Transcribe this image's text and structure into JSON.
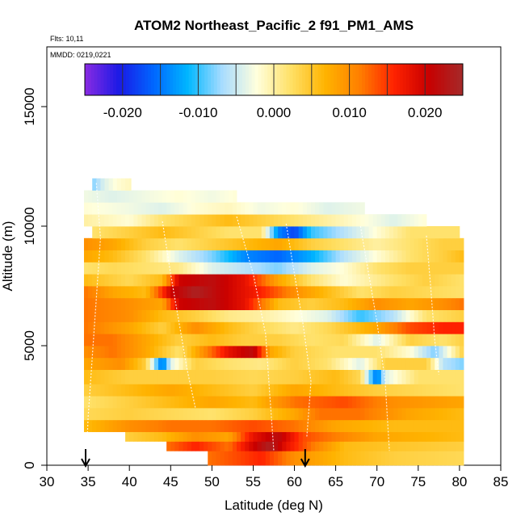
{
  "chart_data": {
    "type": "heatmap",
    "title": "ATOM2 Northeast_Pacific_2 f91_PM1_AMS",
    "subtitle_lines": [
      "Flts: 10,11",
      "MMDD: 0219,0221"
    ],
    "xlabel": "Latitude (deg N)",
    "ylabel": "Altitude (m)",
    "xlim": [
      30,
      85
    ],
    "ylim": [
      0,
      17500
    ],
    "x_ticks": [
      30,
      35,
      40,
      45,
      50,
      55,
      60,
      65,
      70,
      75,
      80,
      85
    ],
    "y_ticks": [
      0,
      5000,
      10000,
      15000
    ],
    "colorbar": {
      "range": [
        -0.025,
        0.025
      ],
      "ticks": [
        -0.02,
        -0.01,
        0.0,
        0.01,
        0.02
      ],
      "tick_labels": [
        "-0.020",
        "-0.010",
        "0.000",
        "0.010",
        "0.020"
      ],
      "colors": [
        "#8a2be2",
        "#1a1ae6",
        "#0066ff",
        "#00b7ff",
        "#a8dcff",
        "#ffffdd",
        "#ffe066",
        "#ffb300",
        "#ff7f00",
        "#ff2200",
        "#c80000",
        "#a52a2a"
      ]
    },
    "arrows_latitude": [
      34.7,
      61.3
    ],
    "layers": [
      {
        "alt0": 0,
        "alt1": 600,
        "lat0": 49.5,
        "lat1": 80.5,
        "stops": [
          [
            49.5,
            0.012
          ],
          [
            53,
            0.014
          ],
          [
            56,
            0.016
          ],
          [
            60,
            0.01
          ],
          [
            66,
            0.006
          ],
          [
            72,
            0.004
          ],
          [
            80.5,
            0.003
          ]
        ]
      },
      {
        "alt0": 600,
        "alt1": 1000,
        "lat0": 44.5,
        "lat1": 80.5,
        "stops": [
          [
            44.5,
            0.012
          ],
          [
            48,
            0.016
          ],
          [
            52,
            0.012
          ],
          [
            55,
            0.02
          ],
          [
            57,
            0.024
          ],
          [
            59,
            0.018
          ],
          [
            62,
            0.012
          ],
          [
            66,
            0.006
          ],
          [
            72,
            0.005
          ],
          [
            80.5,
            0.004
          ]
        ]
      },
      {
        "alt0": 1000,
        "alt1": 1400,
        "lat0": 39.5,
        "lat1": 80.5,
        "stops": [
          [
            39.5,
            0.004
          ],
          [
            44,
            0.006
          ],
          [
            48,
            0.01
          ],
          [
            52,
            0.008
          ],
          [
            55,
            0.018
          ],
          [
            58,
            0.022
          ],
          [
            61,
            0.014
          ],
          [
            64,
            0.012
          ],
          [
            70,
            0.008
          ],
          [
            80.5,
            0.006
          ]
        ]
      },
      {
        "alt0": 1400,
        "alt1": 1900,
        "lat0": 34.5,
        "lat1": 80.5,
        "stops": [
          [
            34.5,
            0.006
          ],
          [
            40,
            0.01
          ],
          [
            45,
            0.012
          ],
          [
            50,
            0.012
          ],
          [
            55,
            0.014
          ],
          [
            60,
            0.012
          ],
          [
            65,
            0.008
          ],
          [
            72,
            0.006
          ],
          [
            80.5,
            0.006
          ]
        ]
      },
      {
        "alt0": 1900,
        "alt1": 2400,
        "lat0": 34.5,
        "lat1": 80.5,
        "stops": [
          [
            34.5,
            0.003
          ],
          [
            40,
            0.004
          ],
          [
            45,
            0.003
          ],
          [
            50,
            0.002
          ],
          [
            55,
            0.004
          ],
          [
            60,
            0.008
          ],
          [
            63,
            0.012
          ],
          [
            68,
            0.012
          ],
          [
            74,
            0.008
          ],
          [
            80.5,
            0.006
          ]
        ]
      },
      {
        "alt0": 2400,
        "alt1": 2900,
        "lat0": 34.5,
        "lat1": 80.5,
        "stops": [
          [
            34.5,
            0.002
          ],
          [
            40,
            0.004
          ],
          [
            45,
            0.006
          ],
          [
            50,
            0.008
          ],
          [
            55,
            0.006
          ],
          [
            60,
            0.012
          ],
          [
            66,
            0.014
          ],
          [
            72,
            0.01
          ],
          [
            80.5,
            0.008
          ]
        ]
      },
      {
        "alt0": 2900,
        "alt1": 3400,
        "lat0": 34.5,
        "lat1": 80.5,
        "stops": [
          [
            34.5,
            0.004
          ],
          [
            40,
            0.006
          ],
          [
            45,
            0.008
          ],
          [
            50,
            0.006
          ],
          [
            55,
            0.004
          ],
          [
            60,
            0.008
          ],
          [
            65,
            0.006
          ],
          [
            70,
            0.004
          ],
          [
            75,
            0.003
          ],
          [
            80.5,
            0.002
          ]
        ]
      },
      {
        "alt0": 3400,
        "alt1": 4000,
        "lat0": 34.5,
        "lat1": 80.5,
        "stops": [
          [
            34.5,
            0.006
          ],
          [
            40,
            0.004
          ],
          [
            45,
            0.004
          ],
          [
            50,
            0.004
          ],
          [
            55,
            0.003
          ],
          [
            60,
            0.004
          ],
          [
            65,
            0.006
          ],
          [
            68,
            0.003
          ],
          [
            70,
            -0.016
          ],
          [
            71,
            -0.004
          ],
          [
            75,
            0.002
          ],
          [
            80.5,
            0.002
          ]
        ]
      },
      {
        "alt0": 4000,
        "alt1": 4500,
        "lat0": 34.5,
        "lat1": 80.5,
        "stops": [
          [
            34.5,
            0.008
          ],
          [
            39,
            0.01
          ],
          [
            42,
            0.004
          ],
          [
            44,
            -0.016
          ],
          [
            45,
            -0.004
          ],
          [
            48,
            0.004
          ],
          [
            52,
            0.002
          ],
          [
            56,
            0.001
          ],
          [
            60,
            0.004
          ],
          [
            64,
            0.002
          ],
          [
            68,
            -0.004
          ],
          [
            71,
            0.004
          ],
          [
            76,
            0.004
          ],
          [
            78,
            -0.006
          ],
          [
            80.5,
            -0.008
          ]
        ]
      },
      {
        "alt0": 4500,
        "alt1": 5000,
        "lat0": 34.5,
        "lat1": 80.5,
        "stops": [
          [
            34.5,
            0.01
          ],
          [
            38,
            0.012
          ],
          [
            42,
            0.008
          ],
          [
            46,
            0.002
          ],
          [
            49,
            0.01
          ],
          [
            52,
            0.018
          ],
          [
            55,
            0.022
          ],
          [
            57,
            0.008
          ],
          [
            60,
            0.004
          ],
          [
            65,
            0.002
          ],
          [
            70,
            0.002
          ],
          [
            74,
            -0.002
          ],
          [
            77,
            -0.008
          ],
          [
            80.5,
            0.004
          ]
        ]
      },
      {
        "alt0": 5000,
        "alt1": 5500,
        "lat0": 34.5,
        "lat1": 80.5,
        "stops": [
          [
            34.5,
            0.012
          ],
          [
            38,
            0.012
          ],
          [
            42,
            0.008
          ],
          [
            46,
            0.004
          ],
          [
            50,
            0.006
          ],
          [
            54,
            0.004
          ],
          [
            58,
            0.004
          ],
          [
            62,
            0.002
          ],
          [
            66,
            0.003
          ],
          [
            70,
            -0.004
          ],
          [
            74,
            0.004
          ],
          [
            78,
            0.002
          ],
          [
            80.5,
            0.004
          ]
        ]
      },
      {
        "alt0": 5500,
        "alt1": 6000,
        "lat0": 34.5,
        "lat1": 80.5,
        "stops": [
          [
            34.5,
            0.012
          ],
          [
            40,
            0.008
          ],
          [
            44,
            0.004
          ],
          [
            48,
            0.01
          ],
          [
            52,
            0.006
          ],
          [
            56,
            0.003
          ],
          [
            60,
            0.001
          ],
          [
            64,
            0.003
          ],
          [
            70,
            0.008
          ],
          [
            74,
            0.014
          ],
          [
            78,
            0.016
          ],
          [
            80.5,
            0.016
          ]
        ]
      },
      {
        "alt0": 6000,
        "alt1": 6500,
        "lat0": 34.5,
        "lat1": 80.5,
        "stops": [
          [
            34.5,
            0.012
          ],
          [
            40,
            0.01
          ],
          [
            44,
            0.006
          ],
          [
            48,
            0.004
          ],
          [
            52,
            0.001
          ],
          [
            56,
            0.0
          ],
          [
            60,
            -0.002
          ],
          [
            64,
            -0.004
          ],
          [
            68,
            -0.01
          ],
          [
            72,
            -0.006
          ],
          [
            76,
            0.002
          ],
          [
            80.5,
            0.004
          ]
        ]
      },
      {
        "alt0": 6500,
        "alt1": 7000,
        "lat0": 34.5,
        "lat1": 80.5,
        "stops": [
          [
            34.5,
            0.012
          ],
          [
            40,
            0.01
          ],
          [
            44,
            0.008
          ],
          [
            46,
            0.02
          ],
          [
            50,
            0.022
          ],
          [
            54,
            0.018
          ],
          [
            58,
            0.006
          ],
          [
            62,
            0.004
          ],
          [
            66,
            0.006
          ],
          [
            70,
            0.01
          ],
          [
            74,
            0.008
          ],
          [
            78,
            0.01
          ],
          [
            80.5,
            0.012
          ]
        ]
      },
      {
        "alt0": 7000,
        "alt1": 7500,
        "lat0": 34.5,
        "lat1": 80.5,
        "stops": [
          [
            34.5,
            0.012
          ],
          [
            38,
            0.008
          ],
          [
            42,
            0.006
          ],
          [
            45,
            0.02
          ],
          [
            48,
            0.024
          ],
          [
            52,
            0.02
          ],
          [
            56,
            0.016
          ],
          [
            60,
            0.01
          ],
          [
            64,
            0.006
          ],
          [
            68,
            0.002
          ],
          [
            72,
            0.004
          ],
          [
            76,
            0.003
          ],
          [
            80.5,
            0.002
          ]
        ]
      },
      {
        "alt0": 7500,
        "alt1": 8000,
        "lat0": 34.5,
        "lat1": 80.5,
        "stops": [
          [
            34.5,
            0.006
          ],
          [
            40,
            0.003
          ],
          [
            44,
            0.006
          ],
          [
            46,
            0.02
          ],
          [
            50,
            0.022
          ],
          [
            54,
            0.018
          ],
          [
            58,
            0.008
          ],
          [
            62,
            0.002
          ],
          [
            66,
            -0.002
          ],
          [
            72,
            0.002
          ],
          [
            76,
            0.004
          ],
          [
            80.5,
            0.002
          ]
        ]
      },
      {
        "alt0": 8000,
        "alt1": 8500,
        "lat0": 34.5,
        "lat1": 80.5,
        "stops": [
          [
            34.5,
            0.002
          ],
          [
            38,
            0.003
          ],
          [
            42,
            0.002
          ],
          [
            46,
            0.001
          ],
          [
            50,
            -0.004
          ],
          [
            54,
            -0.006
          ],
          [
            58,
            -0.008
          ],
          [
            62,
            -0.004
          ],
          [
            66,
            -0.002
          ],
          [
            70,
            0.002
          ],
          [
            74,
            0.004
          ],
          [
            80.5,
            0.004
          ]
        ]
      },
      {
        "alt0": 8500,
        "alt1": 9000,
        "lat0": 34.5,
        "lat1": 80.5,
        "stops": [
          [
            34.5,
            0.008
          ],
          [
            38,
            0.006
          ],
          [
            42,
            0.002
          ],
          [
            46,
            -0.004
          ],
          [
            50,
            -0.008
          ],
          [
            54,
            -0.014
          ],
          [
            58,
            -0.016
          ],
          [
            62,
            -0.012
          ],
          [
            66,
            -0.006
          ],
          [
            70,
            -0.002
          ],
          [
            74,
            0.002
          ],
          [
            78,
            0.004
          ],
          [
            80.5,
            0.006
          ]
        ]
      },
      {
        "alt0": 9000,
        "alt1": 9500,
        "lat0": 34.5,
        "lat1": 80.5,
        "stops": [
          [
            34.5,
            0.01
          ],
          [
            38,
            0.008
          ],
          [
            42,
            0.004
          ],
          [
            46,
            0.002
          ],
          [
            50,
            0.004
          ],
          [
            54,
            0.006
          ],
          [
            58,
            0.008
          ],
          [
            62,
            0.004
          ],
          [
            66,
            0.002
          ],
          [
            70,
            0.0
          ],
          [
            74,
            0.002
          ],
          [
            78,
            0.004
          ],
          [
            80.5,
            0.004
          ]
        ]
      },
      {
        "alt0": 9500,
        "alt1": 10000,
        "lat0": 35.5,
        "lat1": 80,
        "stops": [
          [
            35.5,
            0.002
          ],
          [
            40,
            0.004
          ],
          [
            44,
            0.006
          ],
          [
            48,
            0.004
          ],
          [
            52,
            0.002
          ],
          [
            56,
            0.002
          ],
          [
            58,
            -0.014
          ],
          [
            60,
            -0.018
          ],
          [
            62,
            -0.01
          ],
          [
            66,
            -0.006
          ],
          [
            70,
            -0.002
          ],
          [
            74,
            0.002
          ],
          [
            80,
            0.002
          ]
        ]
      },
      {
        "alt0": 10000,
        "alt1": 10500,
        "lat0": 34.5,
        "lat1": 76,
        "stops": [
          [
            34.5,
            0.0
          ],
          [
            40,
            -0.002
          ],
          [
            44,
            0.002
          ],
          [
            48,
            0.004
          ],
          [
            52,
            0.006
          ],
          [
            56,
            0.004
          ],
          [
            60,
            0.002
          ],
          [
            64,
            0.0
          ],
          [
            68,
            -0.002
          ],
          [
            72,
            -0.004
          ],
          [
            76,
            -0.002
          ]
        ]
      },
      {
        "alt0": 10500,
        "alt1": 11000,
        "lat0": 34.5,
        "lat1": 68.5,
        "stops": [
          [
            34.5,
            -0.002
          ],
          [
            40,
            -0.003
          ],
          [
            44,
            -0.004
          ],
          [
            48,
            -0.002
          ],
          [
            52,
            -0.001
          ],
          [
            56,
            -0.003
          ],
          [
            60,
            -0.002
          ],
          [
            64,
            -0.004
          ],
          [
            68.5,
            -0.003
          ]
        ]
      },
      {
        "alt0": 11000,
        "alt1": 11500,
        "lat0": 34.5,
        "lat1": 53,
        "stops": [
          [
            34.5,
            -0.003
          ],
          [
            38,
            -0.004
          ],
          [
            42,
            -0.003
          ],
          [
            46,
            -0.002
          ],
          [
            50,
            -0.003
          ],
          [
            53,
            -0.002
          ]
        ]
      },
      {
        "alt0": 11500,
        "alt1": 12000,
        "lat0": 35.5,
        "lat1": 40.2,
        "stops": [
          [
            35.5,
            -0.008
          ],
          [
            37,
            -0.004
          ],
          [
            38.5,
            -0.002
          ],
          [
            40.2,
            -0.001
          ]
        ]
      }
    ]
  }
}
